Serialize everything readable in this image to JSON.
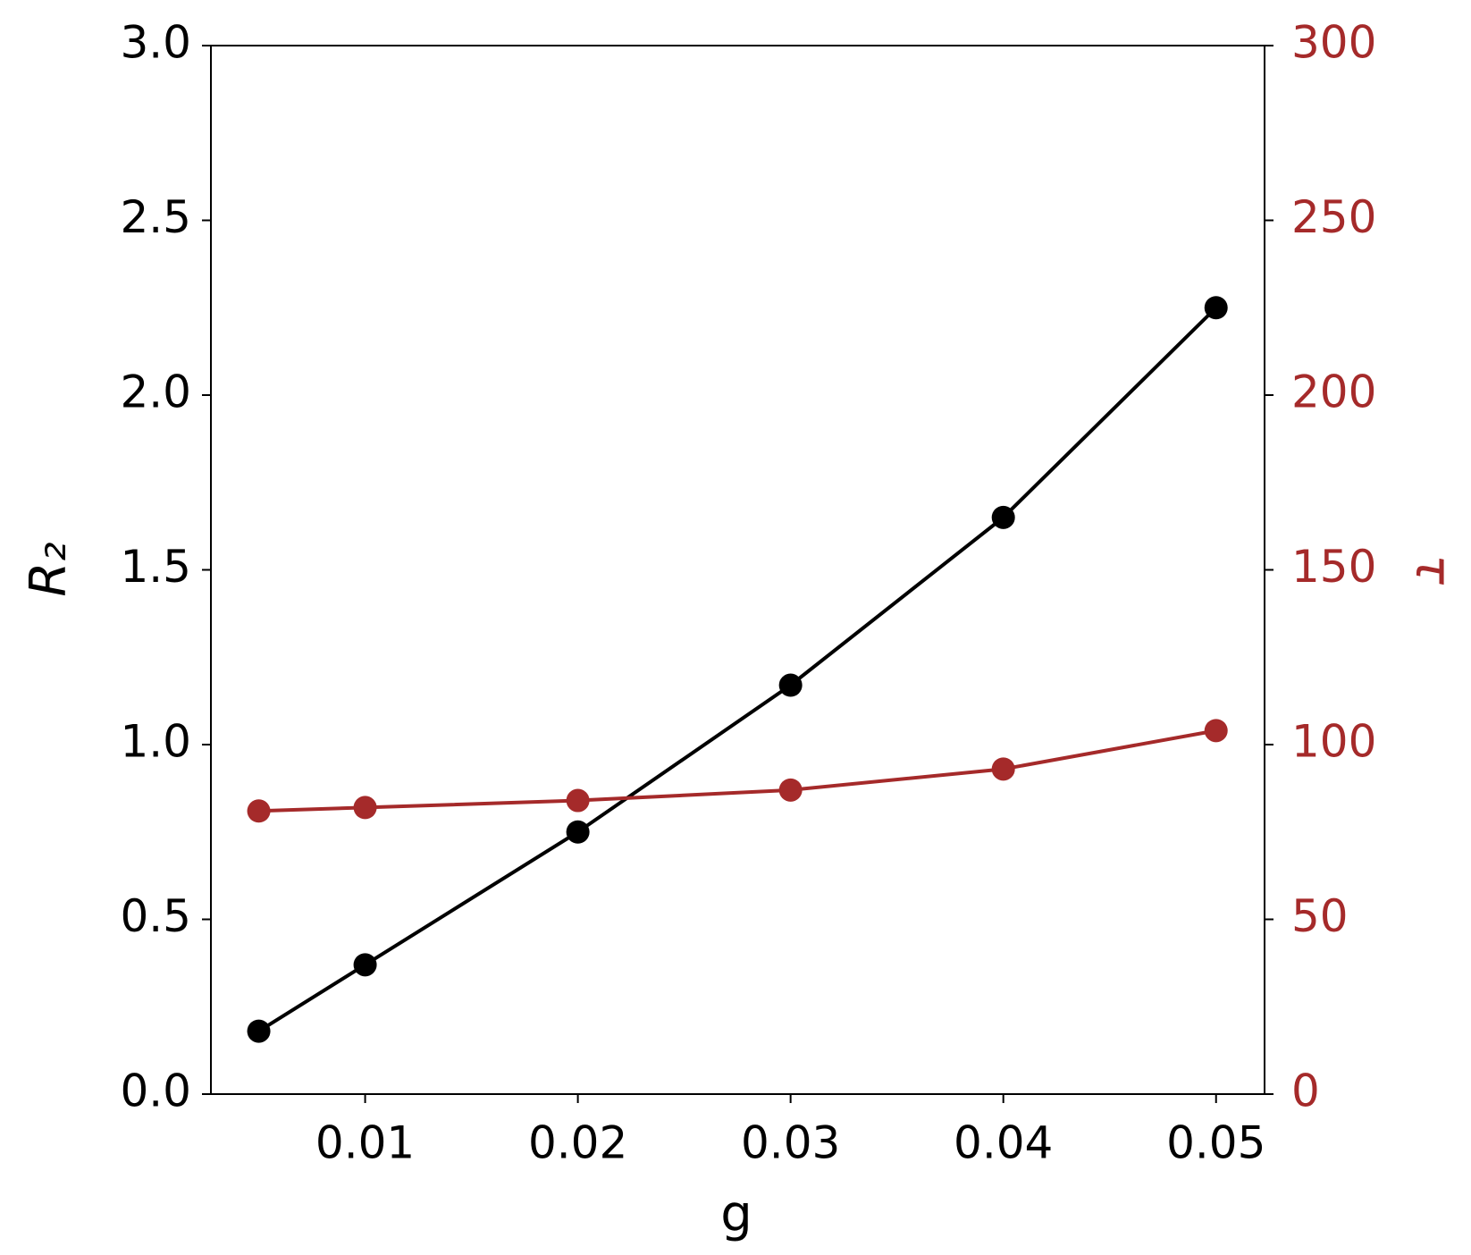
{
  "chart_data": {
    "type": "line",
    "xlabel": "g",
    "ylabel": "R₂",
    "y2label": "τ",
    "x": [
      0.005,
      0.01,
      0.02,
      0.03,
      0.04,
      0.05
    ],
    "series": [
      {
        "color": "#000000",
        "values": [
          0.18,
          0.37,
          0.75,
          1.17,
          1.65,
          2.25
        ]
      },
      {
        "color": "#a52a2a",
        "axis": "y2",
        "values": [
          81,
          82,
          84,
          87,
          93,
          104
        ]
      }
    ],
    "xlim": [
      0.00275,
      0.05228
    ],
    "xticks": [
      0.01,
      0.02,
      0.03,
      0.04,
      0.05
    ],
    "ylim": [
      0,
      3
    ],
    "yticks": [
      {
        "value": 0,
        "label": "0.0"
      },
      0.5,
      {
        "value": 1,
        "label": "1.0"
      },
      1.5,
      {
        "value": 2,
        "label": "2.0"
      },
      2.5,
      {
        "value": 3,
        "label": "3.0"
      }
    ],
    "y2lim": [
      0,
      300
    ],
    "y2ticks": [
      0,
      50,
      100,
      150,
      200,
      250,
      300
    ],
    "y2color": "#a52a2a",
    "grid": false
  }
}
